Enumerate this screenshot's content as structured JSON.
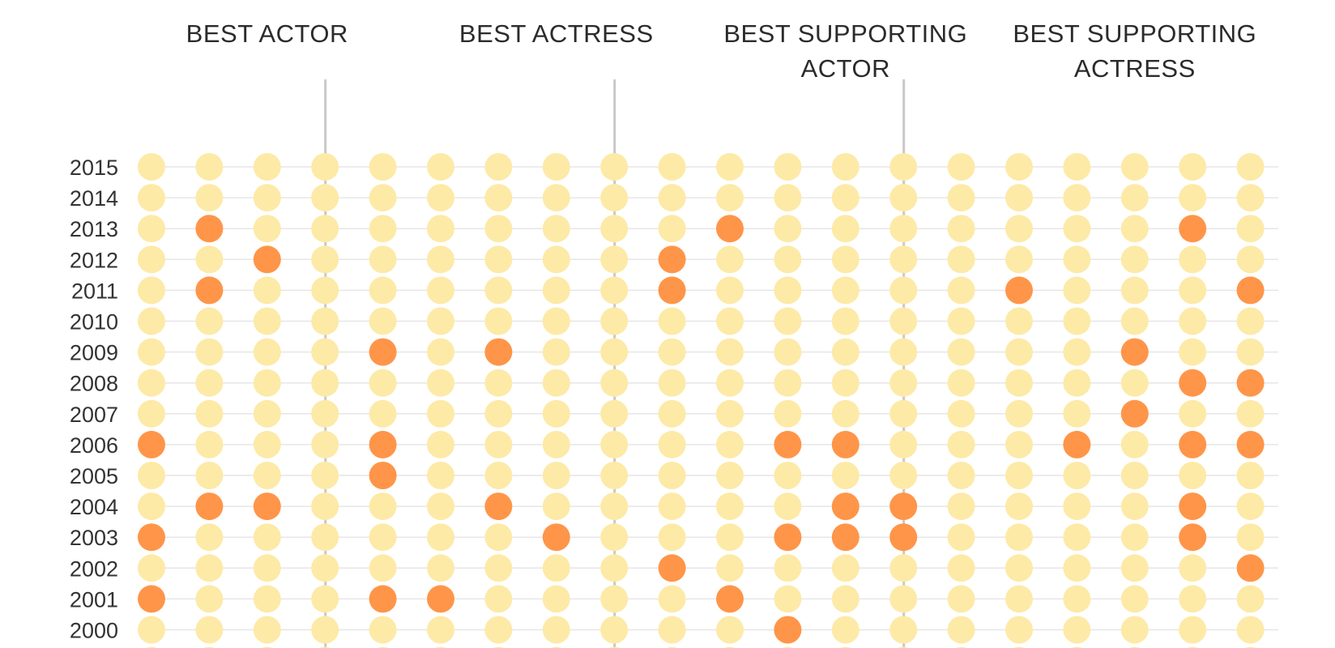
{
  "chart_data": {
    "type": "dot-matrix",
    "categories": [
      {
        "title_lines": [
          "BEST ACTOR"
        ]
      },
      {
        "title_lines": [
          "BEST ACTRESS"
        ]
      },
      {
        "title_lines": [
          "BEST SUPPORTING",
          "ACTOR"
        ]
      },
      {
        "title_lines": [
          "BEST SUPPORTING",
          "ACTRESS"
        ]
      }
    ],
    "years": [
      "2015",
      "2014",
      "2013",
      "2012",
      "2011",
      "2010",
      "2009",
      "2008",
      "2007",
      "2006",
      "2005",
      "2004",
      "2003",
      "2002",
      "2001",
      "2000"
    ],
    "nominees_per_category": 5,
    "colors": {
      "default": "#FDEAA7",
      "highlight": "#FF9548",
      "gridline": "#e6e6e6",
      "divider": "#c8c8c8"
    },
    "highlighted": [
      [
        [],
        [],
        [
          1
        ],
        [
          2
        ],
        [
          1
        ],
        [],
        [
          4
        ],
        [],
        [],
        [
          0,
          4
        ],
        [
          4
        ],
        [
          1,
          2
        ],
        [
          0
        ],
        [],
        [
          0,
          4
        ],
        []
      ],
      [
        [],
        [],
        [],
        [
          4
        ],
        [
          4
        ],
        [],
        [
          1
        ],
        [],
        [],
        [],
        [],
        [
          1
        ],
        [
          2
        ],
        [
          4
        ],
        [
          0
        ],
        []
      ],
      [
        [],
        [],
        [
          0
        ],
        [],
        [],
        [],
        [],
        [],
        [],
        [
          1,
          2
        ],
        [],
        [
          2,
          3
        ],
        [
          1,
          2,
          3
        ],
        [],
        [
          0
        ],
        [
          1
        ]
      ],
      [
        [],
        [],
        [
          3
        ],
        [],
        [
          0,
          4
        ],
        [],
        [
          2
        ],
        [
          3,
          4
        ],
        [
          2
        ],
        [
          1,
          3,
          4
        ],
        [],
        [
          3
        ],
        [
          3
        ],
        [
          4
        ],
        [],
        []
      ]
    ]
  }
}
